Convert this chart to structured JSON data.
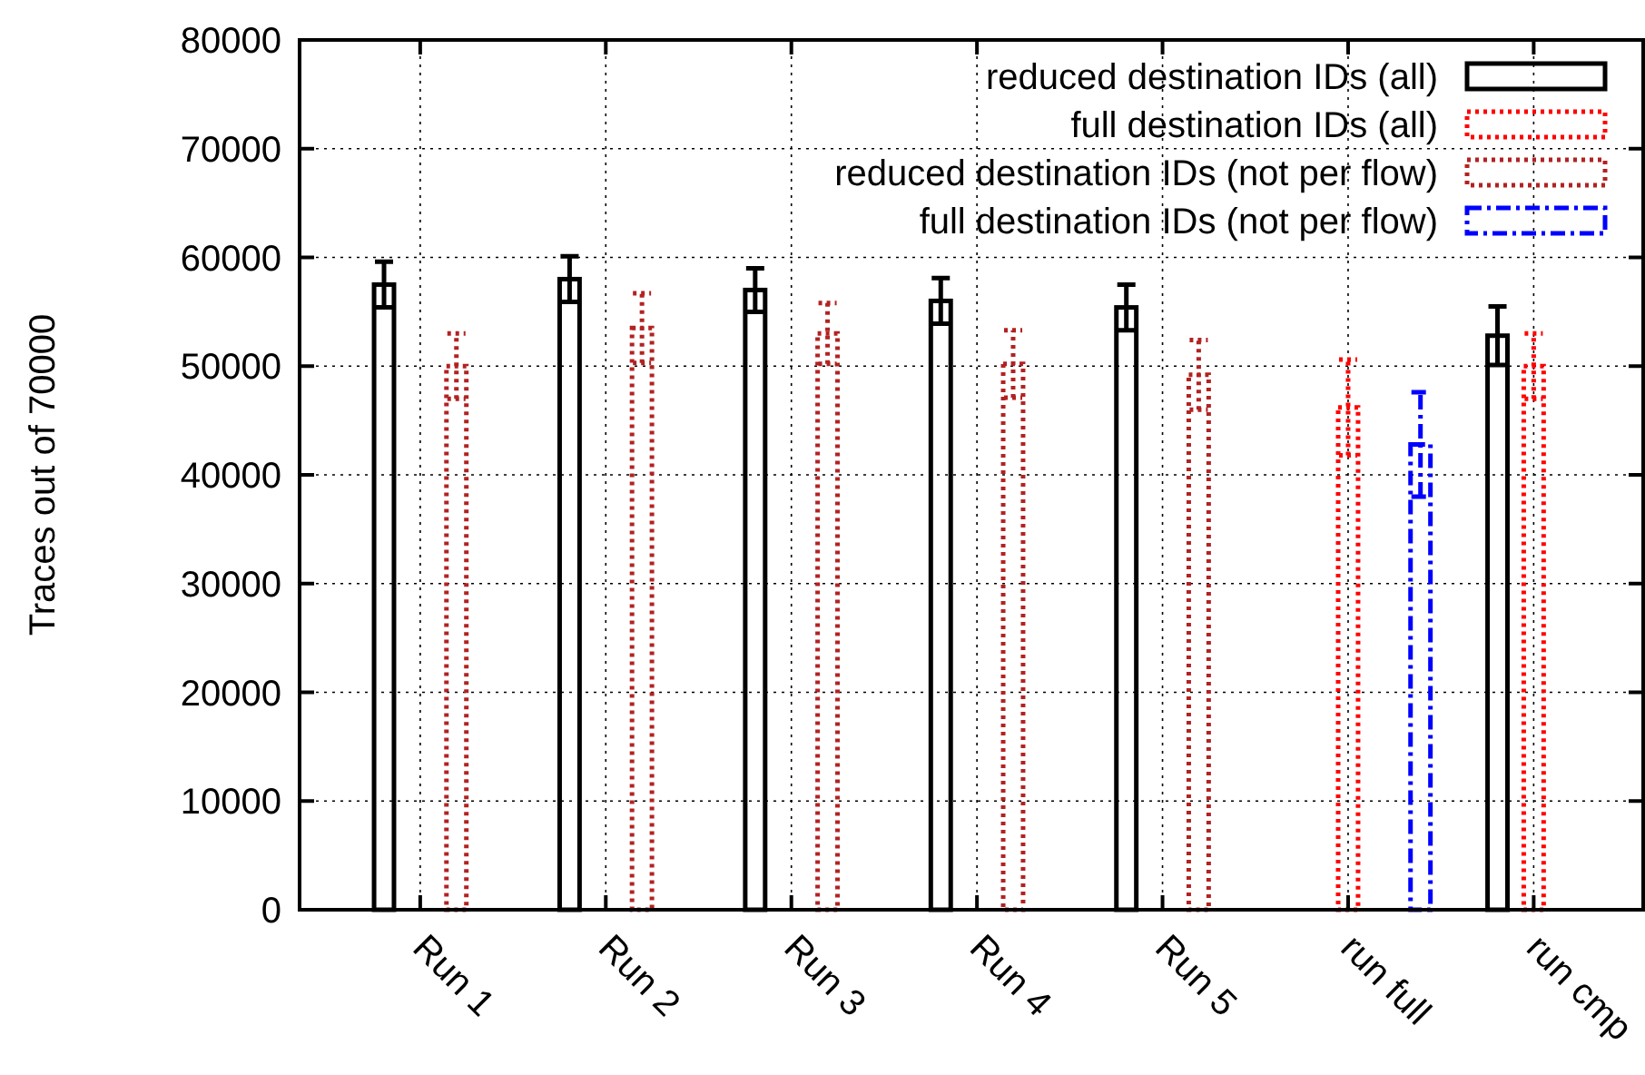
{
  "chart_data": {
    "type": "bar",
    "ylabel": "Traces out of 70000",
    "categories": [
      "Run 1",
      "Run 2",
      "Run 3",
      "Run 4",
      "Run 5",
      "run full",
      "run cmp"
    ],
    "series": [
      {
        "name": "reduced destination IDs (all)",
        "color": "#000000",
        "line_style": "solid",
        "values": [
          57500,
          58000,
          57000,
          56000,
          55400,
          null,
          52800
        ],
        "errors": [
          2100,
          2100,
          2000,
          2100,
          2100,
          null,
          2700
        ]
      },
      {
        "name": "full destination IDs (all)",
        "color": "#ff0000",
        "line_style": "dotted",
        "values": [
          null,
          null,
          null,
          null,
          null,
          46200,
          50000
        ],
        "errors": [
          null,
          null,
          null,
          null,
          null,
          4400,
          3000
        ]
      },
      {
        "name": "reduced destination IDs (not per flow)",
        "color": "#b22222",
        "line_style": "dotted",
        "values": [
          50000,
          53500,
          53000,
          50200,
          49200,
          null,
          null
        ],
        "errors": [
          3000,
          3200,
          2800,
          3100,
          3200,
          null,
          null
        ]
      },
      {
        "name": "full destination IDs (not per flow)",
        "color": "#0000ff",
        "line_style": "dashed",
        "values": [
          null,
          null,
          null,
          null,
          null,
          42800,
          null
        ],
        "errors": [
          null,
          null,
          null,
          null,
          null,
          4800,
          null
        ]
      }
    ],
    "ylim": [
      0,
      80000
    ],
    "yticks": [
      0,
      10000,
      20000,
      30000,
      40000,
      50000,
      60000,
      70000,
      80000
    ],
    "grid": true,
    "legend": "top right"
  }
}
